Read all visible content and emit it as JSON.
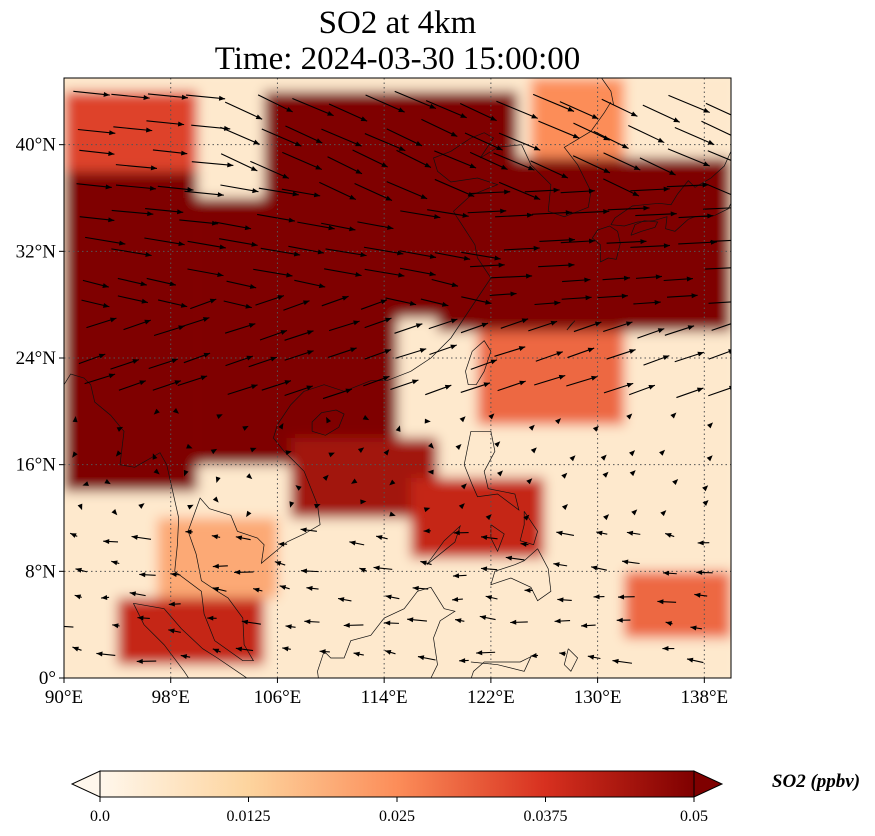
{
  "chart_data": {
    "type": "heatmap",
    "title": "SO2 at 4km",
    "subtitle": "Time: 2024-03-30 15:00:00",
    "variable": "SO2",
    "units": "ppbv",
    "colorbar_label": "SO2 (ppbv)",
    "colormap": "OrRd",
    "colorbar_range": [
      0.0,
      0.05
    ],
    "colorbar_ticks": [
      "0.0",
      "0.0125",
      "0.025",
      "0.0375",
      "0.05"
    ],
    "colorbar_extend": "both",
    "lon_range": [
      90,
      140
    ],
    "lat_range": [
      0,
      45
    ],
    "x_ticks": [
      {
        "value": 90,
        "label": "90°E"
      },
      {
        "value": 98,
        "label": "98°E"
      },
      {
        "value": 106,
        "label": "106°E"
      },
      {
        "value": 114,
        "label": "114°E"
      },
      {
        "value": 122,
        "label": "122°E"
      },
      {
        "value": 130,
        "label": "130°E"
      },
      {
        "value": 138,
        "label": "138°E"
      }
    ],
    "y_ticks": [
      {
        "value": 0,
        "label": "0°"
      },
      {
        "value": 8,
        "label": "8°N"
      },
      {
        "value": 16,
        "label": "16°N"
      },
      {
        "value": 24,
        "label": "24°N"
      },
      {
        "value": 32,
        "label": "32°N"
      },
      {
        "value": 40,
        "label": "40°N"
      }
    ],
    "grid": true,
    "grid_style": "dotted",
    "background_value": 0.005,
    "high_regions": [
      {
        "lon": [
          90,
          100
        ],
        "lat": [
          14,
          38
        ],
        "value": 0.05
      },
      {
        "lon": [
          100,
          115
        ],
        "lat": [
          16,
          36
        ],
        "value": 0.05
      },
      {
        "lon": [
          105,
          124
        ],
        "lat": [
          27,
          44
        ],
        "value": 0.05
      },
      {
        "lon": [
          118,
          140
        ],
        "lat": [
          26,
          39
        ],
        "value": 0.05
      },
      {
        "lon": [
          107,
          118
        ],
        "lat": [
          12,
          18
        ],
        "value": 0.045
      },
      {
        "lon": [
          116,
          126
        ],
        "lat": [
          9,
          15
        ],
        "value": 0.04
      },
      {
        "lon": [
          94,
          105
        ],
        "lat": [
          1,
          6
        ],
        "value": 0.04
      },
      {
        "lon": [
          90,
          100
        ],
        "lat": [
          38,
          44
        ],
        "value": 0.035
      },
      {
        "lon": [
          121,
          132
        ],
        "lat": [
          19,
          26
        ],
        "value": 0.03
      },
      {
        "lon": [
          132,
          140
        ],
        "lat": [
          3,
          8
        ],
        "value": 0.03
      },
      {
        "lon": [
          125,
          132
        ],
        "lat": [
          39,
          45
        ],
        "value": 0.025
      },
      {
        "lon": [
          97,
          106
        ],
        "lat": [
          6,
          12
        ],
        "value": 0.02
      }
    ],
    "wind_vectors_present": true
  }
}
